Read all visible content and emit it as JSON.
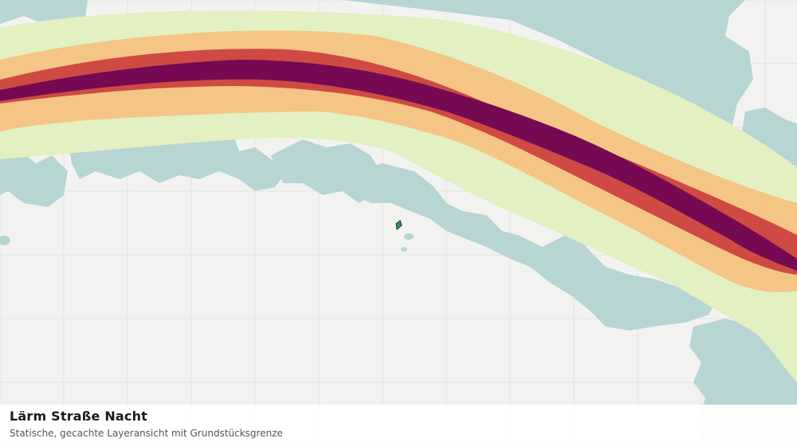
{
  "caption": {
    "title": "Lärm Straße Nacht",
    "subtitle": "Statische, gecachte Layeransicht mit Grundstücksgrenze"
  },
  "colors": {
    "background": "#f2f3f1",
    "grid": "#e2e3e0",
    "vegetation": "#b7d5d3",
    "noise_band_1": "#e2f0c2",
    "noise_band_2": "#f4c585",
    "noise_band_3": "#cf4a43",
    "noise_band_4": "#760a52",
    "parcel_fill": "#3f8c57",
    "parcel_outline": "#0e3a1e"
  },
  "layers": [
    "grid",
    "vegetation",
    "noise-band-1",
    "noise-band-2",
    "noise-band-3",
    "noise-band-4",
    "parcel-boundary"
  ]
}
